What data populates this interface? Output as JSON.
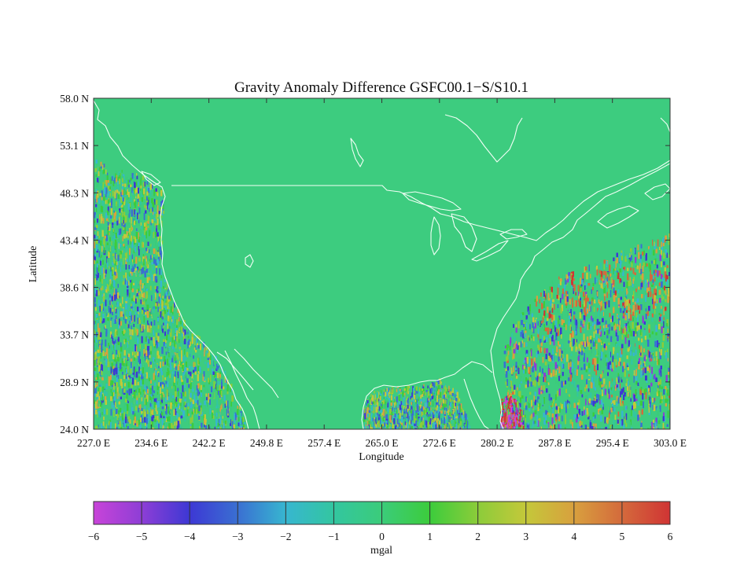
{
  "chart_data": {
    "type": "heatmap",
    "title": "Gravity Anomaly Difference GSFC00.1−S/S10.1",
    "xlabel": "Longitude",
    "ylabel": "Latitude",
    "xlim": [
      227.0,
      303.0
    ],
    "ylim": [
      24.0,
      58.0
    ],
    "xticks": [
      "227.0 E",
      "234.6 E",
      "242.2 E",
      "249.8 E",
      "257.4 E",
      "265.0 E",
      "272.6 E",
      "280.2 E",
      "287.8 E",
      "295.4 E",
      "303.0 E"
    ],
    "yticks": [
      "24.0 N",
      "28.9 N",
      "33.7 N",
      "38.6 N",
      "43.4 N",
      "48.3 N",
      "53.1 N",
      "58.0 N"
    ],
    "background_value": 0.5,
    "land_value": 0.5,
    "ocean_noise_regions": [
      {
        "region": "Pacific offshore",
        "lon": [
          227.0,
          244.0
        ],
        "lat": [
          24.0,
          52.0
        ],
        "range": [
          -4,
          4
        ]
      },
      {
        "region": "Gulf of Mexico",
        "lon": [
          262.0,
          276.0
        ],
        "lat": [
          24.0,
          29.5
        ],
        "range": [
          -4,
          4
        ]
      },
      {
        "region": "Atlantic offshore",
        "lon": [
          280.5,
          303.0
        ],
        "lat": [
          24.0,
          43.0
        ],
        "range": [
          -5,
          6
        ]
      },
      {
        "region": "Bahamas",
        "lon": [
          281.5,
          285.5
        ],
        "lat": [
          24.0,
          27.0
        ],
        "range": [
          -6,
          6
        ]
      }
    ],
    "colorbar": {
      "label": "mgal",
      "ticks": [
        "−6",
        "−5",
        "−4",
        "−3",
        "−2",
        "−1",
        "0",
        "1",
        "2",
        "3",
        "4",
        "5",
        "6"
      ],
      "range": [
        -6,
        6
      ],
      "colors": [
        "#c844d8",
        "#8e3ed6",
        "#3d38d4",
        "#3a6fd2",
        "#37b6d0",
        "#33c6a0",
        "#3bcc7a",
        "#3ccc3c",
        "#8ccc3a",
        "#c4c83a",
        "#d8a03e",
        "#d46a3c",
        "#d03434"
      ]
    }
  }
}
